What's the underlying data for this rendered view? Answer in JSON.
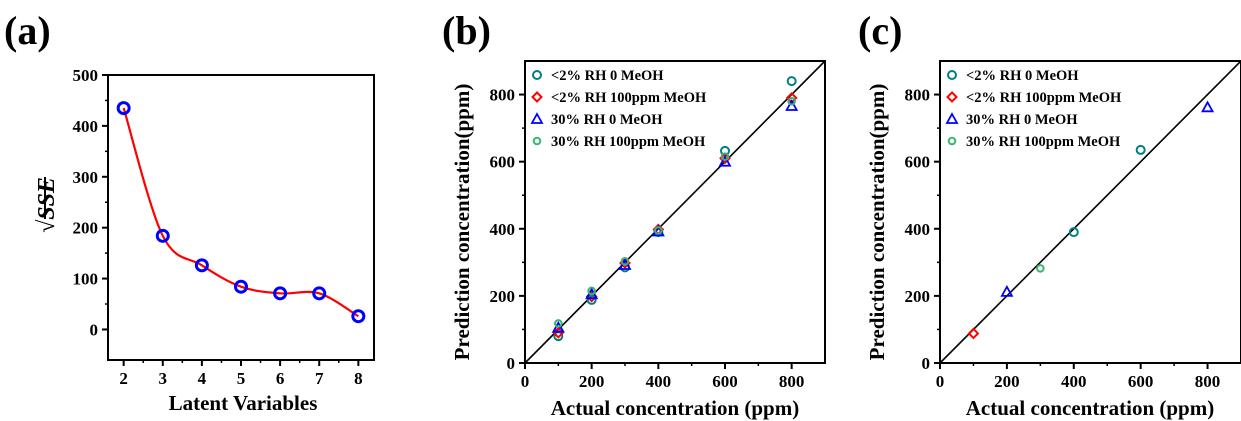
{
  "chart_data": [
    {
      "panel": "(a)",
      "type": "line",
      "xlabel": "Latent Variables",
      "ylabel": "√SSE",
      "xlim": [
        1.6,
        8.4
      ],
      "ylim": [
        -60,
        500
      ],
      "xticks": [
        2,
        3,
        4,
        5,
        6,
        7,
        8
      ],
      "yticks": [
        0,
        100,
        200,
        300,
        400,
        500
      ],
      "xtick_labels": [
        "2",
        "3",
        "4",
        "5",
        "6",
        "7",
        "8"
      ],
      "ytick_labels": [
        "0",
        "100",
        "200",
        "300",
        "400",
        "500"
      ],
      "grid": false,
      "series": [
        {
          "marker": "circle-open",
          "marker_color": "#0000ff",
          "line_color": "#ff0000",
          "smooth": true,
          "x": [
            2,
            3,
            4,
            5,
            6,
            7,
            8
          ],
          "y": [
            435,
            184,
            126,
            84,
            71,
            71,
            26
          ]
        }
      ]
    },
    {
      "panel": "(b)",
      "type": "scatter",
      "xlabel": "Actual concentration (ppm)",
      "ylabel": "Prediction concentration(ppm)",
      "xlim": [
        0,
        900
      ],
      "ylim": [
        0,
        900
      ],
      "xticks": [
        0,
        200,
        400,
        600,
        800
      ],
      "yticks": [
        0,
        200,
        400,
        600,
        800
      ],
      "xtick_labels": [
        "0",
        "200",
        "400",
        "600",
        "800"
      ],
      "ytick_labels": [
        "0",
        "200",
        "400",
        "600",
        "800"
      ],
      "grid": false,
      "legend_position": "top-left",
      "reference_line": "y=x",
      "series": [
        {
          "name": "<2% RH 0 MeOH",
          "marker": "circle-open",
          "color": "#008080",
          "x": [
            100,
            200,
            300,
            400,
            600,
            800
          ],
          "y": [
            80,
            188,
            285,
            390,
            632,
            840
          ]
        },
        {
          "name": "<2% RH 100ppm MeOH",
          "marker": "diamond-open",
          "color": "#ff0000",
          "x": [
            100,
            200,
            300,
            400,
            600,
            800
          ],
          "y": [
            90,
            198,
            298,
            398,
            610,
            790
          ]
        },
        {
          "name": "30% RH 0 MeOH",
          "marker": "triangle-open",
          "color": "#0000ff",
          "x": [
            100,
            200,
            300,
            400,
            600,
            800
          ],
          "y": [
            105,
            205,
            292,
            392,
            600,
            766
          ]
        },
        {
          "name": "30% RH 100ppm MeOH",
          "marker": "circle-open-small",
          "color": "#3cb371",
          "x": [
            100,
            200,
            300,
            400,
            600,
            800
          ],
          "y": [
            118,
            215,
            303,
            395,
            615,
            780
          ]
        }
      ]
    },
    {
      "panel": "(c)",
      "type": "scatter",
      "xlabel": "Actual concentration (ppm)",
      "ylabel": "Prediction concentration(ppm)",
      "xlim": [
        0,
        900
      ],
      "ylim": [
        0,
        900
      ],
      "xticks": [
        0,
        200,
        400,
        600,
        800
      ],
      "yticks": [
        0,
        200,
        400,
        600,
        800
      ],
      "xtick_labels": [
        "0",
        "200",
        "400",
        "600",
        "800"
      ],
      "ytick_labels": [
        "0",
        "200",
        "400",
        "600",
        "800"
      ],
      "grid": false,
      "legend_position": "top-left",
      "reference_line": "y=x",
      "series": [
        {
          "name": "<2% RH 0 MeOH",
          "marker": "circle-open",
          "color": "#008080",
          "x": [
            400,
            600
          ],
          "y": [
            390,
            635
          ]
        },
        {
          "name": "<2% RH 100ppm MeOH",
          "marker": "diamond-open",
          "color": "#ff0000",
          "x": [
            100
          ],
          "y": [
            88
          ]
        },
        {
          "name": "30% RH 0 MeOH",
          "marker": "triangle-open",
          "color": "#0000ff",
          "x": [
            200,
            800
          ],
          "y": [
            212,
            762
          ]
        },
        {
          "name": "30% RH 100ppm MeOH",
          "marker": "circle-open-small",
          "color": "#3cb371",
          "x": [
            300
          ],
          "y": [
            282
          ]
        }
      ]
    }
  ]
}
